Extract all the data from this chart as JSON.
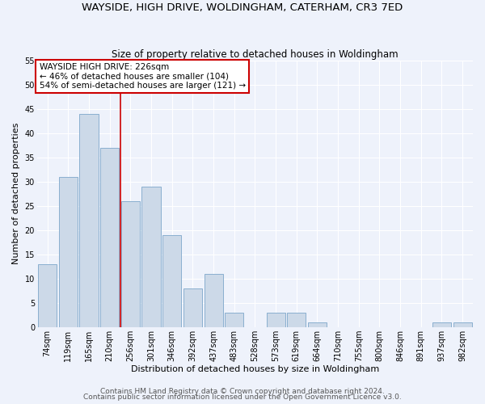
{
  "title": "WAYSIDE, HIGH DRIVE, WOLDINGHAM, CATERHAM, CR3 7ED",
  "subtitle": "Size of property relative to detached houses in Woldingham",
  "xlabel": "Distribution of detached houses by size in Woldingham",
  "ylabel": "Number of detached properties",
  "categories": [
    "74sqm",
    "119sqm",
    "165sqm",
    "210sqm",
    "256sqm",
    "301sqm",
    "346sqm",
    "392sqm",
    "437sqm",
    "483sqm",
    "528sqm",
    "573sqm",
    "619sqm",
    "664sqm",
    "710sqm",
    "755sqm",
    "800sqm",
    "846sqm",
    "891sqm",
    "937sqm",
    "982sqm"
  ],
  "values": [
    13,
    31,
    44,
    37,
    26,
    29,
    19,
    8,
    11,
    3,
    0,
    3,
    3,
    1,
    0,
    0,
    0,
    0,
    0,
    1,
    1
  ],
  "bar_color": "#ccd9e8",
  "bar_edge_color": "#8aafcf",
  "background_color": "#eef2fb",
  "grid_color": "#ffffff",
  "red_line_x": 3.5,
  "annotation_title": "WAYSIDE HIGH DRIVE: 226sqm",
  "annotation_line1": "← 46% of detached houses are smaller (104)",
  "annotation_line2": "54% of semi-detached houses are larger (121) →",
  "annotation_box_color": "#ffffff",
  "annotation_border_color": "#cc0000",
  "ylim": [
    0,
    55
  ],
  "yticks": [
    0,
    5,
    10,
    15,
    20,
    25,
    30,
    35,
    40,
    45,
    50,
    55
  ],
  "footer_line1": "Contains HM Land Registry data © Crown copyright and database right 2024.",
  "footer_line2": "Contains public sector information licensed under the Open Government Licence v3.0.",
  "title_fontsize": 9.5,
  "subtitle_fontsize": 8.5,
  "label_fontsize": 8,
  "tick_fontsize": 7,
  "annot_fontsize": 7.5,
  "footer_fontsize": 6.5
}
